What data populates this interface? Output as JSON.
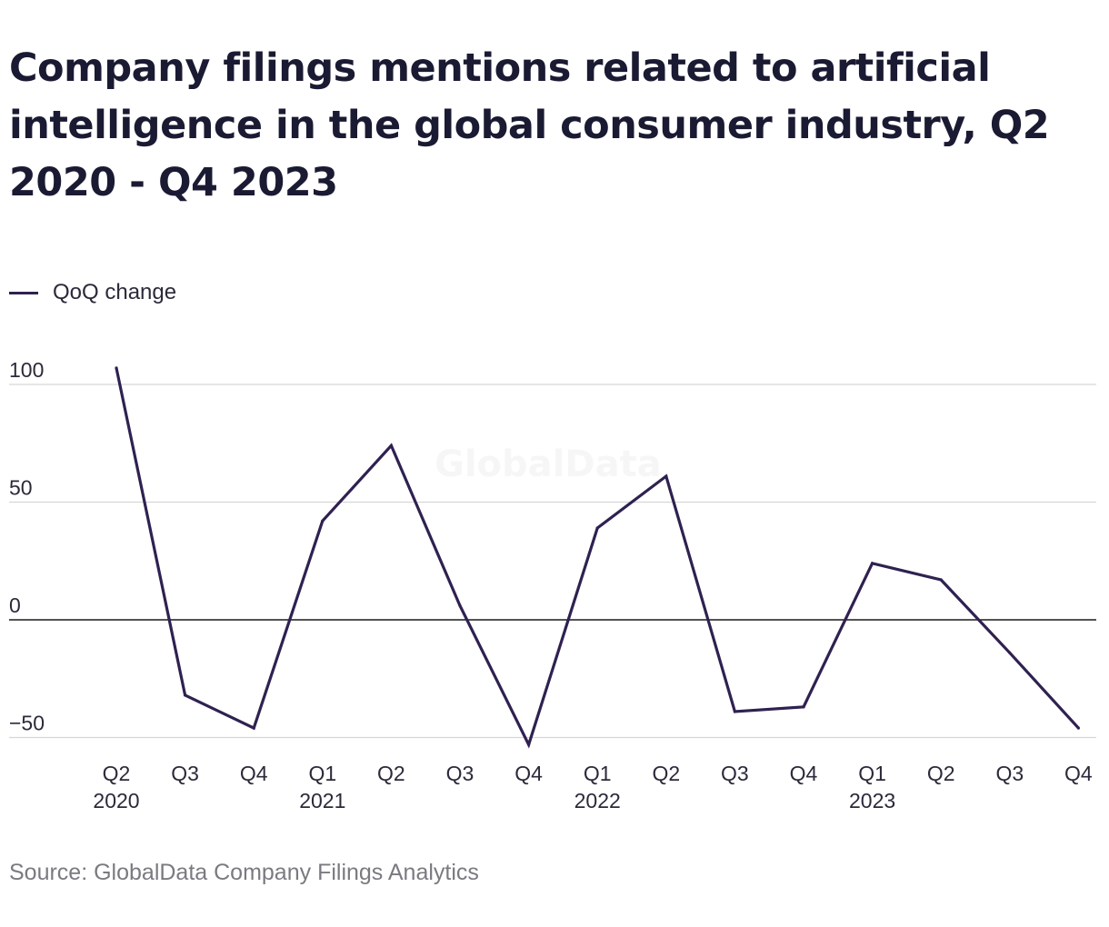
{
  "title": "Company filings mentions related to artificial intelligence in the global consumer industry, Q2 2020 - Q4 2023",
  "watermark": "GlobalData",
  "source": "Source: GlobalData Company Filings Analytics",
  "colors": {
    "line": "#2f2150",
    "grid": "#d6d6d6",
    "zero": "#1a1a1a"
  },
  "chart_data": {
    "type": "line",
    "categories": [
      "Q2 2020",
      "Q3 2020",
      "Q4 2020",
      "Q1 2021",
      "Q2 2021",
      "Q3 2021",
      "Q4 2021",
      "Q1 2022",
      "Q2 2022",
      "Q3 2022",
      "Q4 2022",
      "Q1 2023",
      "Q2 2023",
      "Q3 2023",
      "Q4 2023"
    ],
    "tick_labels": [
      {
        "q": "Q2",
        "y": "2020"
      },
      {
        "q": "Q3",
        "y": ""
      },
      {
        "q": "Q4",
        "y": ""
      },
      {
        "q": "Q1",
        "y": "2021"
      },
      {
        "q": "Q2",
        "y": ""
      },
      {
        "q": "Q3",
        "y": ""
      },
      {
        "q": "Q4",
        "y": ""
      },
      {
        "q": "Q1",
        "y": "2022"
      },
      {
        "q": "Q2",
        "y": ""
      },
      {
        "q": "Q3",
        "y": ""
      },
      {
        "q": "Q4",
        "y": ""
      },
      {
        "q": "Q1",
        "y": "2023"
      },
      {
        "q": "Q2",
        "y": ""
      },
      {
        "q": "Q3",
        "y": ""
      },
      {
        "q": "Q4",
        "y": ""
      }
    ],
    "series": [
      {
        "name": "QoQ change",
        "values": [
          107,
          -32,
          -46,
          42,
          74,
          6,
          -53,
          39,
          61,
          -39,
          -37,
          24,
          17,
          -14,
          -46
        ]
      }
    ],
    "yticks": [
      100,
      50,
      0,
      -50
    ],
    "ytick_labels": [
      "100",
      "50",
      "0",
      "−50"
    ],
    "ylim": [
      -56,
      110
    ],
    "grid": true,
    "legend": "top-left"
  }
}
